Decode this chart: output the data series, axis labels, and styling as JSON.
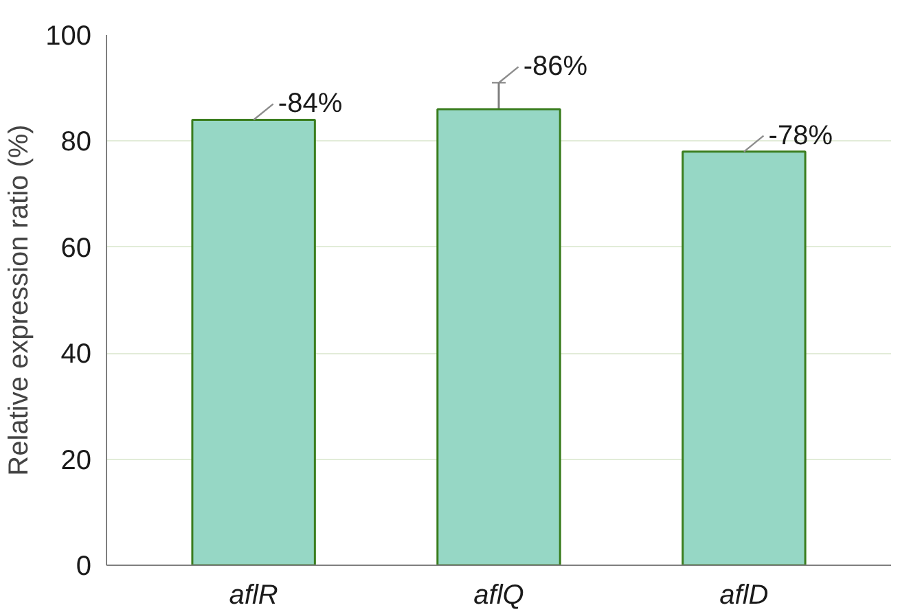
{
  "chart_data": {
    "type": "bar",
    "ylabel": "Relative expression ratio (%)",
    "categories": [
      "aflR",
      "aflQ",
      "aflD"
    ],
    "values": [
      84,
      86,
      78
    ],
    "errors": [
      null,
      5,
      null
    ],
    "annotations": [
      {
        "text": "-84%",
        "x": "aflR",
        "y": 84
      },
      {
        "text": "-86%",
        "x": "aflQ",
        "y": 91
      },
      {
        "text": "-78%",
        "x": "aflD",
        "y": 78
      }
    ],
    "color": "#96d7c5",
    "ylim": [
      0,
      100
    ],
    "yticks": [
      0,
      20,
      40,
      60,
      80,
      100
    ],
    "grid": "y"
  }
}
